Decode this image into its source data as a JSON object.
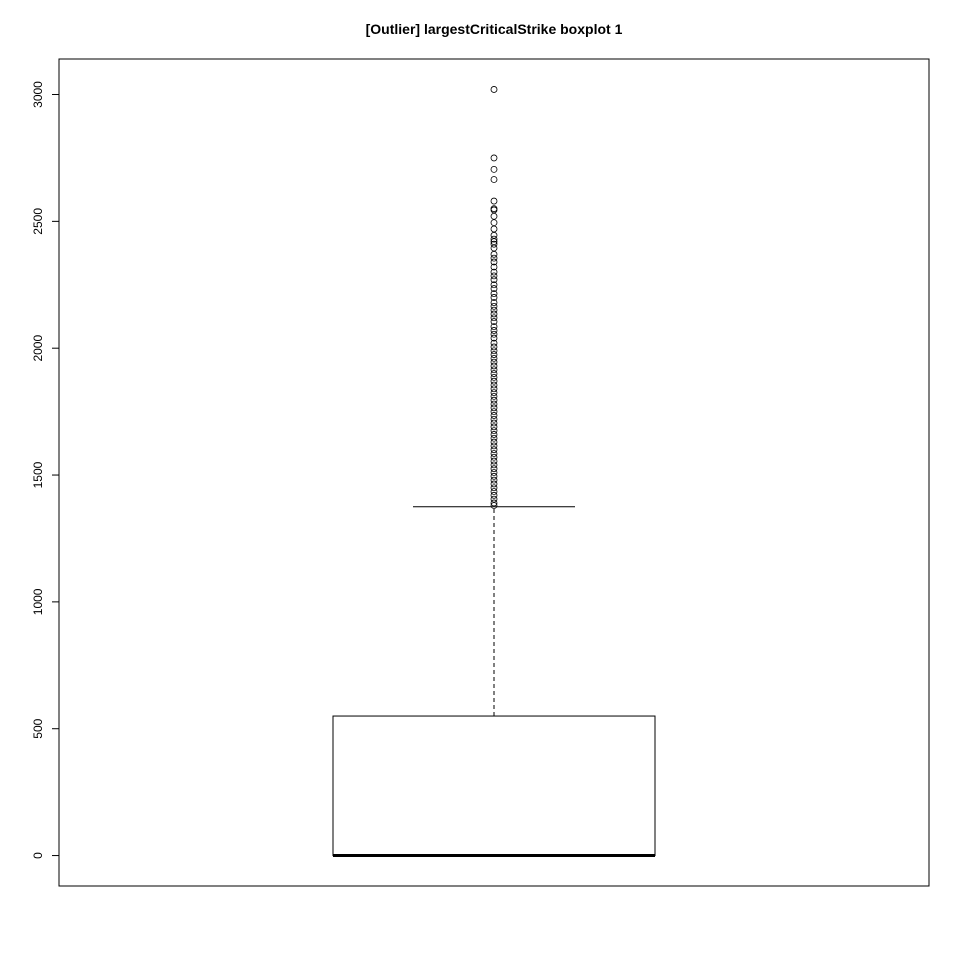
{
  "chart_data": {
    "type": "boxplot",
    "title": "[Outlier] largestCriticalStrike boxplot 1",
    "xlabel": "",
    "ylabel": "",
    "ylim": [
      -120,
      3140
    ],
    "yticks": [
      0,
      500,
      1000,
      1500,
      2000,
      2500,
      3000
    ],
    "ytick_labels": [
      "0",
      "500",
      "1000",
      "1500",
      "2000",
      "2500",
      "3000"
    ],
    "grid": false,
    "box": {
      "min": 0,
      "q1": 0,
      "median": 0,
      "q3": 550,
      "whisker_low": 0,
      "whisker_high": 1375
    },
    "outliers": [
      3020,
      2750,
      2705,
      2665,
      2580,
      2550,
      2545,
      2520,
      2495,
      2470,
      2445,
      2430,
      2420,
      2410,
      2395,
      2370,
      2355,
      2340,
      2320,
      2300,
      2285,
      2270,
      2250,
      2235,
      2215,
      2200,
      2180,
      2165,
      2150,
      2135,
      2120,
      2105,
      2085,
      2070,
      2055,
      2040,
      2020,
      2005,
      1990,
      1975,
      1960,
      1945,
      1930,
      1915,
      1900,
      1885,
      1870,
      1855,
      1840,
      1825,
      1810,
      1795,
      1780,
      1765,
      1750,
      1735,
      1720,
      1705,
      1690,
      1675,
      1660,
      1645,
      1630,
      1615,
      1600,
      1585,
      1570,
      1555,
      1540,
      1525,
      1510,
      1495,
      1480,
      1465,
      1450,
      1435,
      1420,
      1405,
      1390,
      1380
    ]
  }
}
